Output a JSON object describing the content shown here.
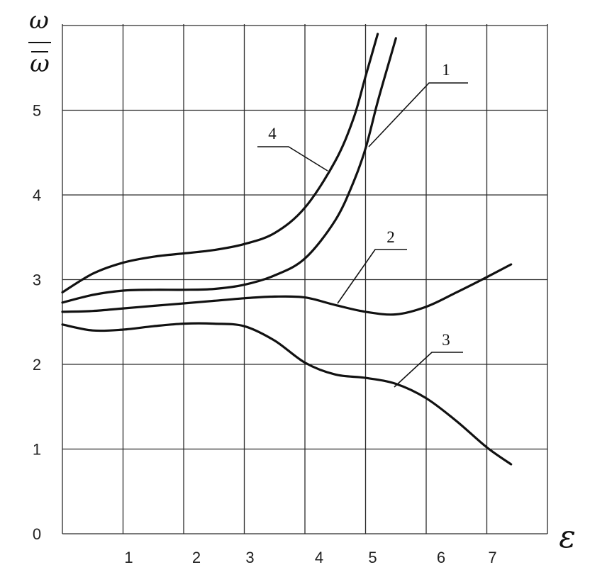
{
  "chart_data": {
    "type": "line",
    "ylabel_numerator": "ω",
    "ylabel_denominator": "ω",
    "xlabel": "ε",
    "xlim": [
      0,
      8
    ],
    "ylim": [
      0,
      6
    ],
    "grid": true,
    "x_ticks": [
      "1",
      "2",
      "3",
      "4",
      "5",
      "6",
      "7"
    ],
    "y_ticks": [
      "0",
      "1",
      "2",
      "3",
      "4",
      "5"
    ],
    "series": [
      {
        "name": "1",
        "x": [
          0,
          0.5,
          1,
          1.5,
          2,
          2.5,
          3,
          3.5,
          4,
          4.5,
          4.8,
          5,
          5.2,
          5.4,
          5.5
        ],
        "y": [
          2.73,
          2.82,
          2.87,
          2.88,
          2.88,
          2.89,
          2.94,
          3.05,
          3.25,
          3.7,
          4.15,
          4.55,
          5.1,
          5.6,
          5.85
        ]
      },
      {
        "name": "2",
        "x": [
          0,
          0.5,
          1,
          1.5,
          2,
          2.5,
          3,
          3.5,
          4,
          4.5,
          5,
          5.5,
          6,
          6.5,
          7,
          7.4
        ],
        "y": [
          2.62,
          2.63,
          2.66,
          2.69,
          2.72,
          2.75,
          2.78,
          2.8,
          2.79,
          2.7,
          2.62,
          2.59,
          2.68,
          2.85,
          3.03,
          3.18
        ]
      },
      {
        "name": "3",
        "x": [
          0,
          0.5,
          1,
          1.5,
          2,
          2.5,
          3,
          3.5,
          4,
          4.5,
          5,
          5.5,
          6,
          6.5,
          7,
          7.4
        ],
        "y": [
          2.47,
          2.4,
          2.41,
          2.45,
          2.48,
          2.48,
          2.45,
          2.28,
          2.02,
          1.88,
          1.84,
          1.77,
          1.6,
          1.33,
          1.02,
          0.82
        ]
      },
      {
        "name": "4",
        "x": [
          0,
          0.5,
          1,
          1.5,
          2,
          2.5,
          3,
          3.5,
          4,
          4.5,
          4.8,
          5,
          5.2
        ],
        "y": [
          2.85,
          3.07,
          3.2,
          3.27,
          3.31,
          3.35,
          3.42,
          3.55,
          3.85,
          4.4,
          4.9,
          5.4,
          5.9
        ]
      }
    ]
  }
}
